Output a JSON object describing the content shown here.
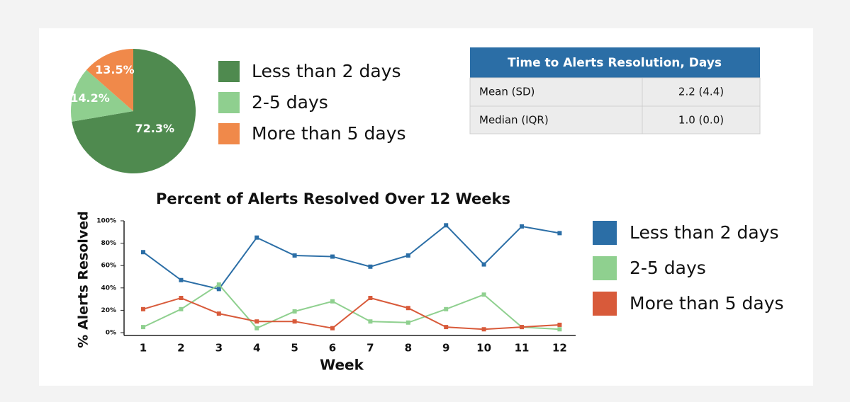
{
  "chart_data": [
    {
      "type": "pie",
      "categories": [
        "Less than 2 days",
        "2-5 days",
        "More than 5 days"
      ],
      "values": [
        72.3,
        14.2,
        13.5
      ],
      "value_labels": [
        "72.3%",
        "14.2%",
        "13.5%"
      ],
      "colors": [
        "#4f8a4f",
        "#8fcf8f",
        "#f0894a"
      ]
    },
    {
      "type": "line",
      "title": "Percent of Alerts Resolved Over 12 Weeks",
      "xlabel": "Week",
      "ylabel": "% Alerts Resolved",
      "categories": [
        "1",
        "2",
        "3",
        "4",
        "5",
        "6",
        "7",
        "8",
        "9",
        "10",
        "11",
        "12"
      ],
      "series": [
        {
          "name": "Less than 2 days",
          "color": "#2b6ea6",
          "values": [
            72,
            47,
            39,
            85,
            69,
            68,
            59,
            69,
            96,
            61,
            95,
            89
          ]
        },
        {
          "name": "2-5 days",
          "color": "#8fd08f",
          "values": [
            5,
            21,
            43,
            4,
            19,
            28,
            10,
            9,
            21,
            34,
            5,
            3
          ]
        },
        {
          "name": "More than 5 days",
          "color": "#d85a3a",
          "values": [
            21,
            31,
            17,
            10,
            10,
            4,
            31,
            22,
            5,
            3,
            5,
            7
          ]
        }
      ],
      "ylim": [
        0,
        100
      ],
      "yticks": [
        {
          "value": 0,
          "label": "0%"
        },
        {
          "value": 20,
          "label": "20%"
        },
        {
          "value": 40,
          "label": "40%"
        },
        {
          "value": 60,
          "label": "60%"
        },
        {
          "value": 80,
          "label": "80%"
        },
        {
          "value": 100,
          "label": "100%"
        }
      ]
    }
  ],
  "table": {
    "title": "Time to Alerts Resolution, Days",
    "rows": [
      [
        "Mean (SD)",
        "2.2 (4.4)"
      ],
      [
        "Median (IQR)",
        "1.0 (0.0)"
      ]
    ]
  }
}
